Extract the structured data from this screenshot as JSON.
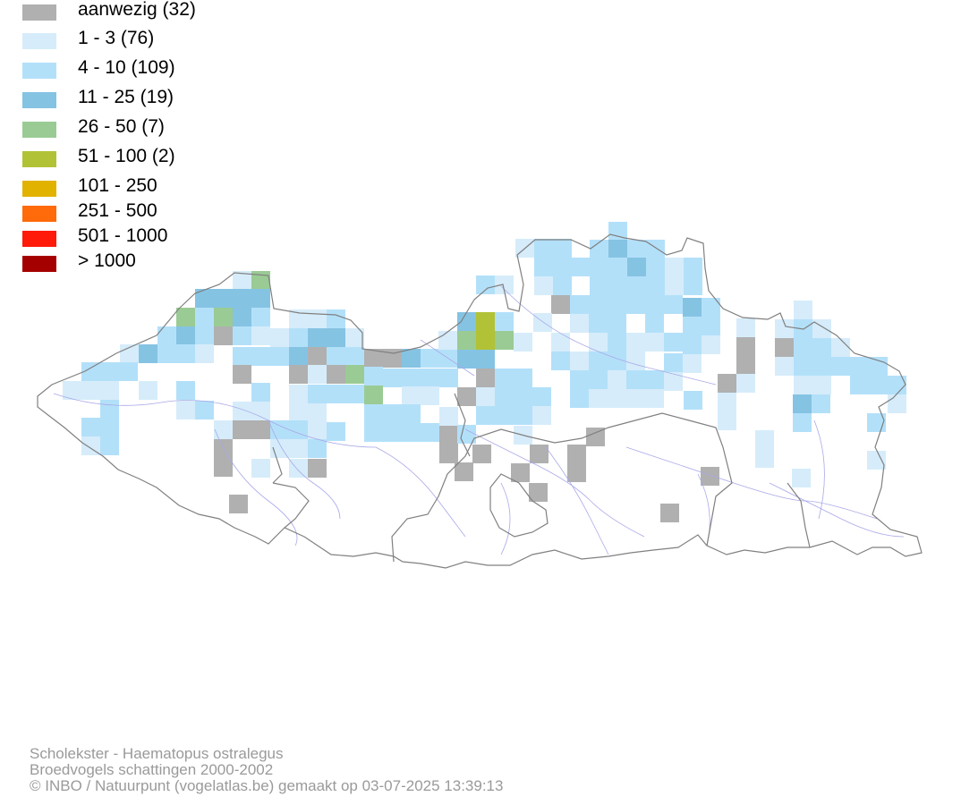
{
  "legend": {
    "items": [
      {
        "label": "aanwezig (32)",
        "color": "#b0b0b0"
      },
      {
        "label": "1 - 3 (76)",
        "color": "#d6ecfa"
      },
      {
        "label": "4 - 10 (109)",
        "color": "#b3e0f9"
      },
      {
        "label": "11 - 25 (19)",
        "color": "#85c3e3"
      },
      {
        "label": "26 - 50 (7)",
        "color": "#9acb94"
      },
      {
        "label": "51 - 100 (2)",
        "color": "#b2c236"
      },
      {
        "label": "101 - 250",
        "color": "#e2b200"
      },
      {
        "label": "251 - 500",
        "color": "#ff6a0a"
      },
      {
        "label": "501 - 1000",
        "color": "#ff1a0a"
      },
      {
        "label": "> 1000",
        "color": "#a50000"
      }
    ]
  },
  "map": {
    "border_color": "#808080",
    "river_color": "#a8a8e8"
  },
  "footer": {
    "species": "Scholekster - Haematopus ostralegus",
    "dataset": "Broedvogels schattingen 2000-2002",
    "credit": "© INBO / Natuurpunt (vogelatlas.be) gemaakt op 03-07-2025 13:39:13"
  }
}
